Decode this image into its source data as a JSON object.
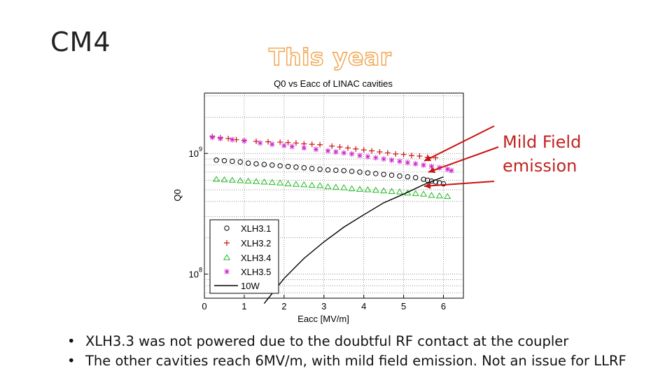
{
  "slide": {
    "title": "CM4",
    "section_title": "This year",
    "annotation": "Mild Field emission",
    "bullets": [
      "XLH3.3 was not powered due to the doubtful RF contact at the coupler",
      "The other cavities reach 6MV/m, with mild field emission. Not an issue for LLRF"
    ]
  },
  "colors": {
    "xlh31": "#000000",
    "xlh32": "#cc1111",
    "xlh34": "#22bb22",
    "xlh35": "#cc22cc",
    "line10w": "#000000",
    "arrow": "#cc1111"
  },
  "chart_data": {
    "type": "scatter",
    "title": "Q0 vs Eacc of LINAC cavities",
    "xlabel": "Eacc [MV/m]",
    "ylabel": "Q0",
    "xlim": [
      0,
      6.5
    ],
    "ylim_log10": [
      7.8,
      9.5
    ],
    "x_ticks": [
      "0",
      "1",
      "2",
      "3",
      "4",
      "5",
      "6"
    ],
    "y_ticks": [
      {
        "base": "10",
        "exp": "9"
      },
      {
        "base": "10",
        "exp": "8"
      }
    ],
    "grid": true,
    "legend_position": "bottom-left",
    "series": [
      {
        "name": "XLH3.1",
        "marker": "circle",
        "x": [
          0.3,
          0.5,
          0.7,
          0.9,
          1.1,
          1.3,
          1.5,
          1.7,
          1.9,
          2.1,
          2.3,
          2.5,
          2.7,
          2.9,
          3.1,
          3.3,
          3.5,
          3.7,
          3.9,
          4.1,
          4.3,
          4.5,
          4.7,
          4.9,
          5.1,
          5.3,
          5.5,
          5.6,
          5.7,
          5.8,
          5.9,
          6.0
        ],
        "y": [
          880000000.0,
          870000000.0,
          860000000.0,
          850000000.0,
          830000000.0,
          820000000.0,
          810000000.0,
          800000000.0,
          790000000.0,
          780000000.0,
          770000000.0,
          760000000.0,
          750000000.0,
          740000000.0,
          730000000.0,
          725000000.0,
          720000000.0,
          710000000.0,
          700000000.0,
          690000000.0,
          680000000.0,
          670000000.0,
          660000000.0,
          650000000.0,
          640000000.0,
          630000000.0,
          610000000.0,
          600000000.0,
          590000000.0,
          580000000.0,
          570000000.0,
          560000000.0
        ]
      },
      {
        "name": "XLH3.2",
        "marker": "plus",
        "x": [
          0.2,
          0.4,
          0.6,
          0.8,
          1.0,
          1.3,
          1.6,
          1.9,
          2.1,
          2.3,
          2.5,
          2.7,
          2.9,
          3.2,
          3.4,
          3.6,
          3.8,
          4.0,
          4.2,
          4.4,
          4.6,
          4.8,
          5.0,
          5.2,
          5.4,
          5.6,
          5.8
        ],
        "y": [
          1380000000.0,
          1350000000.0,
          1330000000.0,
          1300000000.0,
          1280000000.0,
          1260000000.0,
          1250000000.0,
          1240000000.0,
          1230000000.0,
          1220000000.0,
          1200000000.0,
          1190000000.0,
          1180000000.0,
          1150000000.0,
          1130000000.0,
          1110000000.0,
          1090000000.0,
          1070000000.0,
          1050000000.0,
          1030000000.0,
          1010000000.0,
          990000000.0,
          980000000.0,
          960000000.0,
          950000000.0,
          930000000.0,
          920000000.0
        ]
      },
      {
        "name": "XLH3.4",
        "marker": "triangle",
        "x": [
          0.3,
          0.5,
          0.7,
          0.9,
          1.1,
          1.3,
          1.5,
          1.7,
          1.9,
          2.1,
          2.3,
          2.5,
          2.7,
          2.9,
          3.1,
          3.3,
          3.5,
          3.7,
          3.9,
          4.1,
          4.3,
          4.5,
          4.7,
          4.9,
          5.1,
          5.3,
          5.5,
          5.7,
          5.9,
          6.1
        ],
        "y": [
          610000000.0,
          605000000.0,
          600000000.0,
          595000000.0,
          590000000.0,
          585000000.0,
          580000000.0,
          575000000.0,
          570000000.0,
          560000000.0,
          555000000.0,
          550000000.0,
          545000000.0,
          540000000.0,
          530000000.0,
          525000000.0,
          520000000.0,
          510000000.0,
          505000000.0,
          500000000.0,
          495000000.0,
          490000000.0,
          485000000.0,
          480000000.0,
          470000000.0,
          465000000.0,
          460000000.0,
          450000000.0,
          445000000.0,
          440000000.0
        ]
      },
      {
        "name": "XLH3.5",
        "marker": "asterisk",
        "x": [
          0.2,
          0.4,
          0.7,
          1.0,
          1.4,
          1.7,
          2.0,
          2.2,
          2.5,
          2.8,
          3.1,
          3.3,
          3.5,
          3.7,
          3.9,
          4.1,
          4.3,
          4.5,
          4.7,
          4.9,
          5.1,
          5.3,
          5.5,
          5.7,
          5.9,
          6.1,
          6.2
        ],
        "y": [
          1360000000.0,
          1330000000.0,
          1300000000.0,
          1270000000.0,
          1220000000.0,
          1190000000.0,
          1160000000.0,
          1140000000.0,
          1110000000.0,
          1080000000.0,
          1050000000.0,
          1030000000.0,
          1010000000.0,
          990000000.0,
          960000000.0,
          940000000.0,
          920000000.0,
          900000000.0,
          880000000.0,
          860000000.0,
          840000000.0,
          820000000.0,
          800000000.0,
          780000000.0,
          760000000.0,
          740000000.0,
          720000000.0
        ]
      },
      {
        "name": "10W",
        "marker": "line",
        "x": [
          1.5,
          2.0,
          2.5,
          3.0,
          3.5,
          4.0,
          4.5,
          5.0,
          5.5,
          6.0
        ],
        "y": [
          57000000.0,
          92000000.0,
          135000000.0,
          185000000.0,
          245000000.0,
          310000000.0,
          390000000.0,
          460000000.0,
          550000000.0,
          640000000.0
        ]
      }
    ]
  }
}
